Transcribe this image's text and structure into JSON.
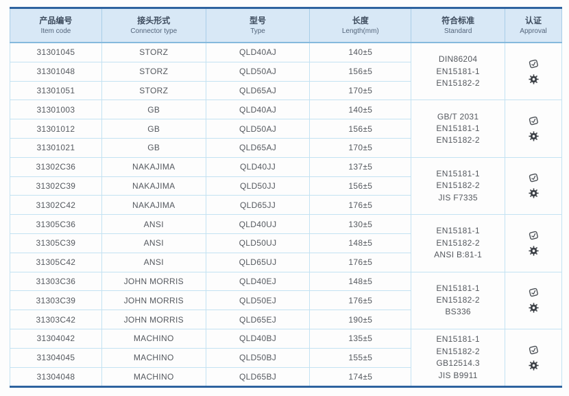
{
  "colors": {
    "header_bg": "#d8e8f6",
    "border_dark_blue": "#2e639f",
    "border_light_blue": "#c3e2f2",
    "header_text": "#3e4c5e",
    "body_text": "#54585e"
  },
  "table": {
    "columns": [
      {
        "zh": "产品编号",
        "en": "Item code"
      },
      {
        "zh": "接头形式",
        "en": "Connector type"
      },
      {
        "zh": "型号",
        "en": "Type"
      },
      {
        "zh": "长度",
        "en": "Length(mm)"
      },
      {
        "zh": "符合标准",
        "en": "Standard"
      },
      {
        "zh": "认证",
        "en": "Approval"
      }
    ],
    "approval_icons": [
      "certificate-stamp-icon",
      "wheelmark-gear-icon"
    ],
    "groups": [
      {
        "rows": [
          {
            "item_code": "31301045",
            "connector_type": "STORZ",
            "type": "QLD40AJ",
            "length": "140±5"
          },
          {
            "item_code": "31301048",
            "connector_type": "STORZ",
            "type": "QLD50AJ",
            "length": "156±5"
          },
          {
            "item_code": "31301051",
            "connector_type": "STORZ",
            "type": "QLD65AJ",
            "length": "170±5"
          }
        ],
        "standards": [
          "DIN86204",
          "EN15181-1",
          "EN15182-2"
        ]
      },
      {
        "rows": [
          {
            "item_code": "31301003",
            "connector_type": "GB",
            "type": "QLD40AJ",
            "length": "140±5"
          },
          {
            "item_code": "31301012",
            "connector_type": "GB",
            "type": "QLD50AJ",
            "length": "156±5"
          },
          {
            "item_code": "31301021",
            "connector_type": "GB",
            "type": "QLD65AJ",
            "length": "170±5"
          }
        ],
        "standards": [
          "GB/T 2031",
          "EN15181-1",
          "EN15182-2"
        ]
      },
      {
        "rows": [
          {
            "item_code": "31302C36",
            "connector_type": "NAKAJIMA",
            "type": "QLD40JJ",
            "length": "137±5"
          },
          {
            "item_code": "31302C39",
            "connector_type": "NAKAJIMA",
            "type": "QLD50JJ",
            "length": "156±5"
          },
          {
            "item_code": "31302C42",
            "connector_type": "NAKAJIMA",
            "type": "QLD65JJ",
            "length": "176±5"
          }
        ],
        "standards": [
          "EN15181-1",
          "EN15182-2",
          "JIS F7335"
        ]
      },
      {
        "rows": [
          {
            "item_code": "31305C36",
            "connector_type": "ANSI",
            "type": "QLD40UJ",
            "length": "130±5"
          },
          {
            "item_code": "31305C39",
            "connector_type": "ANSI",
            "type": "QLD50UJ",
            "length": "148±5"
          },
          {
            "item_code": "31305C42",
            "connector_type": "ANSI",
            "type": "QLD65UJ",
            "length": "176±5"
          }
        ],
        "standards": [
          "EN15181-1",
          "EN15182-2",
          "ANSI B:81-1"
        ]
      },
      {
        "rows": [
          {
            "item_code": "31303C36",
            "connector_type": "JOHN MORRIS",
            "type": "QLD40EJ",
            "length": "148±5"
          },
          {
            "item_code": "31303C39",
            "connector_type": "JOHN MORRIS",
            "type": "QLD50EJ",
            "length": "176±5"
          },
          {
            "item_code": "31303C42",
            "connector_type": "JOHN MORRIS",
            "type": "QLD65EJ",
            "length": "190±5"
          }
        ],
        "standards": [
          "EN15181-1",
          "EN15182-2",
          "BS336"
        ]
      },
      {
        "rows": [
          {
            "item_code": "31304042",
            "connector_type": "MACHINO",
            "type": "QLD40BJ",
            "length": "135±5"
          },
          {
            "item_code": "31304045",
            "connector_type": "MACHINO",
            "type": "QLD50BJ",
            "length": "155±5"
          },
          {
            "item_code": "31304048",
            "connector_type": "MACHINO",
            "type": "QLD65BJ",
            "length": "174±5"
          }
        ],
        "standards": [
          "EN15181-1",
          "EN15182-2",
          "GB12514.3",
          "JIS B9911"
        ]
      }
    ]
  }
}
